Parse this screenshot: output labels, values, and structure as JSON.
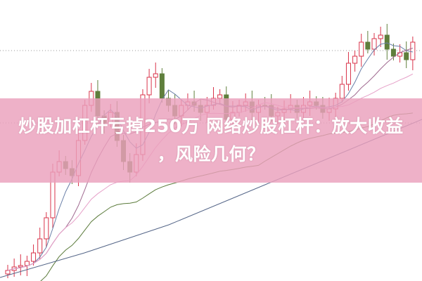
{
  "headline": {
    "line1": "炒股加杠杆亏掉250万 网络炒股杠杆：放大收益",
    "line2": "，风险几何？"
  },
  "colors": {
    "banner": "#eaa0bc",
    "up_candle": "#d9334a",
    "down_candle": "#5f7f3c",
    "title_text": "#ffffff"
  },
  "background_image": "candlestick-stock-chart"
}
